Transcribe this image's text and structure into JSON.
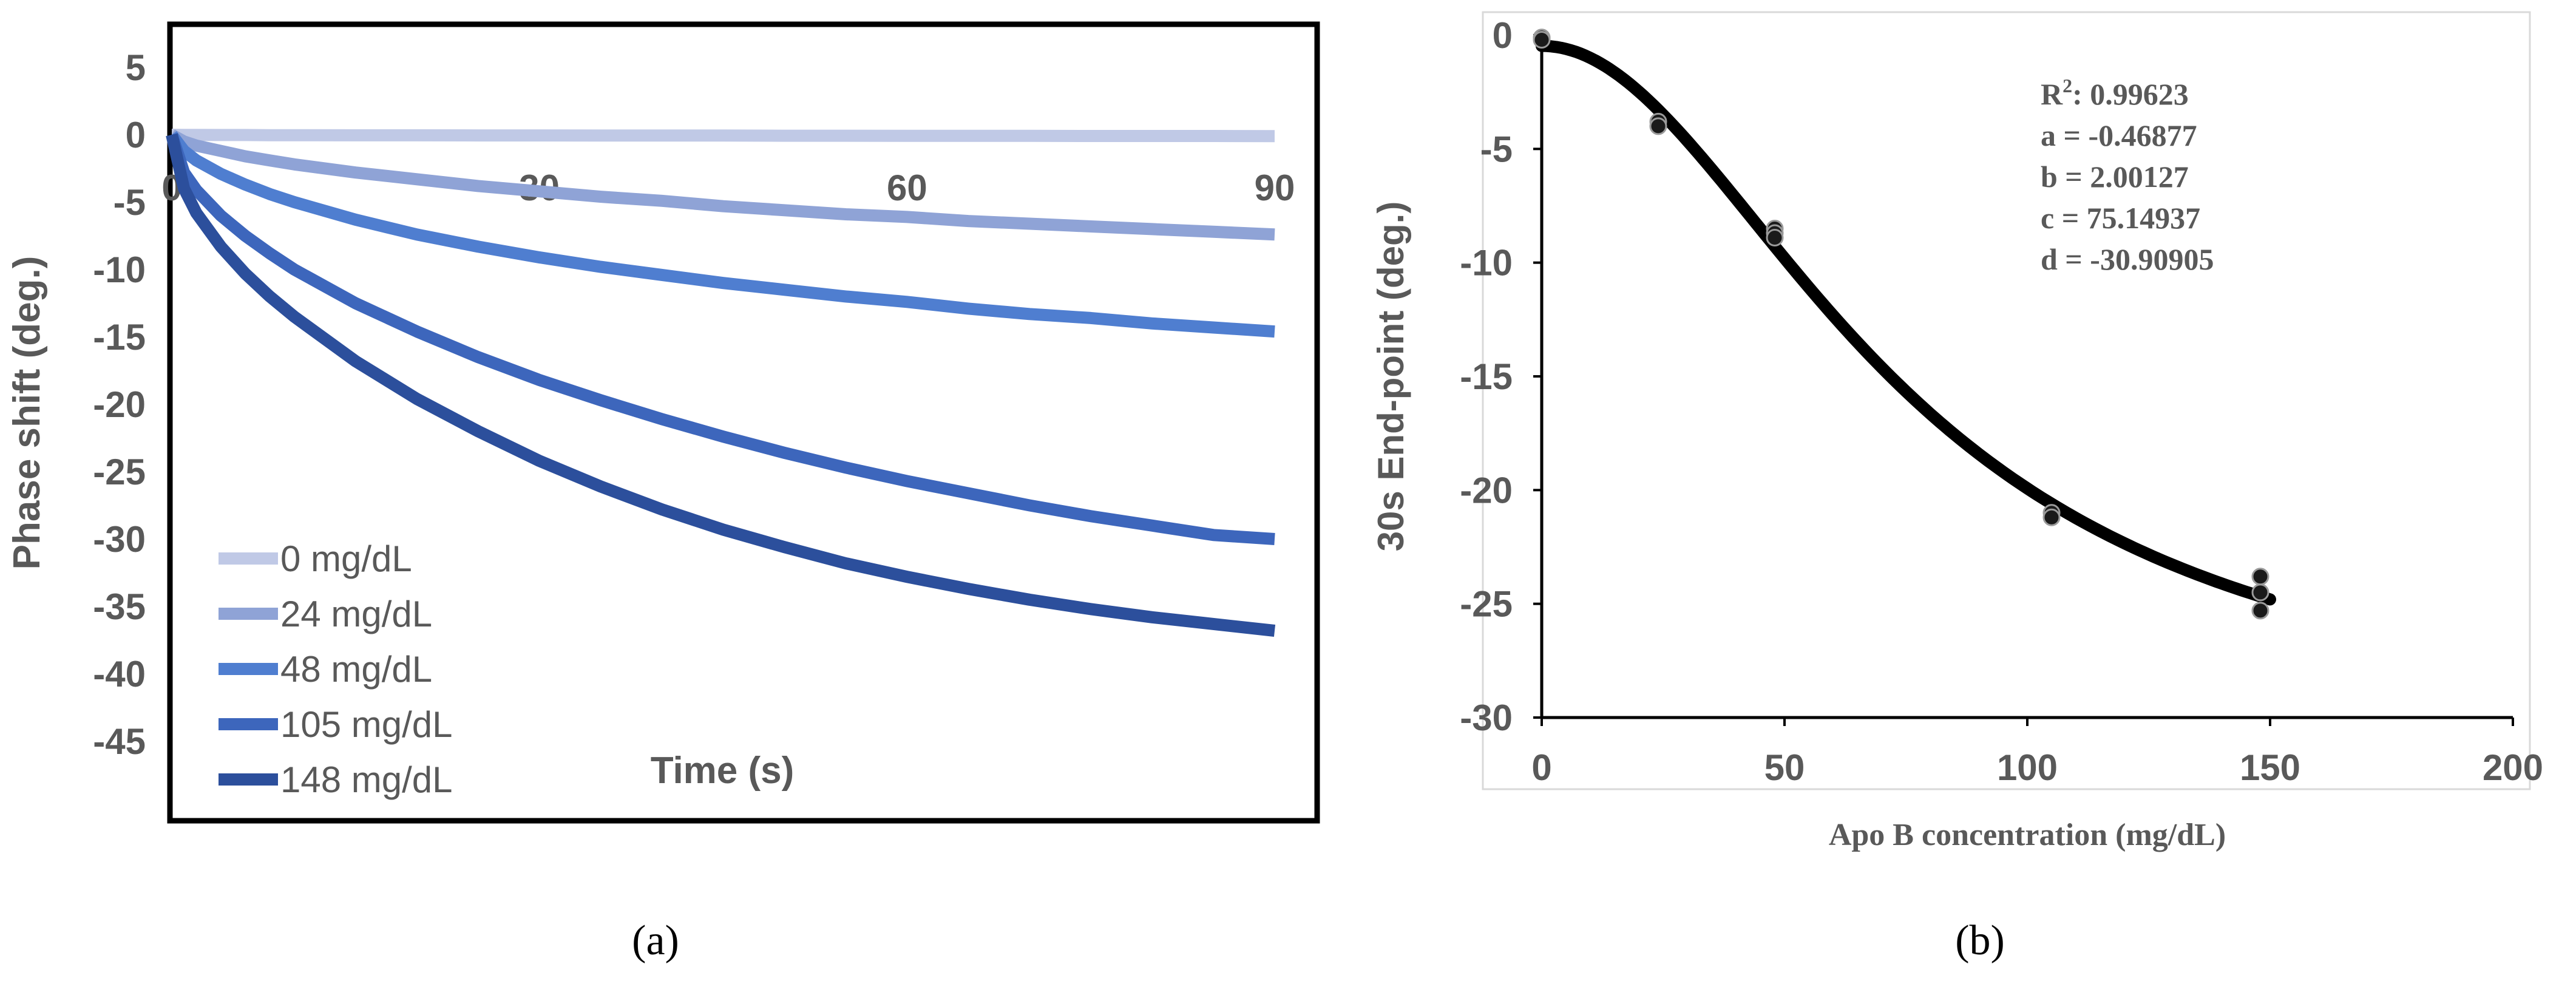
{
  "chart_data": [
    {
      "panel_label": "(a)",
      "type": "line",
      "xlabel": "Time (s)",
      "ylabel": "Phase shift (deg.)",
      "xlim": [
        0,
        90
      ],
      "ylim": [
        -50,
        8
      ],
      "x_ticks": [
        "0",
        "30",
        "60",
        "90"
      ],
      "y_ticks": [
        "5",
        "0",
        "-5",
        "-10",
        "-15",
        "-20",
        "-25",
        "-30",
        "-35",
        "-40",
        "-45"
      ],
      "legend_position": "bottom-left",
      "grid": false,
      "x": [
        0,
        1,
        2,
        4,
        6,
        8,
        10,
        15,
        20,
        25,
        30,
        35,
        40,
        45,
        50,
        55,
        60,
        65,
        70,
        75,
        80,
        85,
        90
      ],
      "series": [
        {
          "name": "0 mg/dL",
          "color": "#c0c9e6",
          "values": [
            0,
            -0.01,
            -0.01,
            -0.02,
            -0.02,
            -0.03,
            -0.03,
            -0.04,
            -0.04,
            -0.05,
            -0.05,
            -0.06,
            -0.06,
            -0.06,
            -0.07,
            -0.07,
            -0.08,
            -0.08,
            -0.08,
            -0.09,
            -0.09,
            -0.09,
            -0.1
          ]
        },
        {
          "name": "24 mg/dL",
          "color": "#8fa3d6",
          "values": [
            0,
            -0.5,
            -0.8,
            -1.2,
            -1.6,
            -1.9,
            -2.2,
            -2.8,
            -3.3,
            -3.8,
            -4.2,
            -4.6,
            -4.9,
            -5.3,
            -5.6,
            -5.9,
            -6.1,
            -6.4,
            -6.6,
            -6.8,
            -7.0,
            -7.2,
            -7.4
          ]
        },
        {
          "name": "48 mg/dL",
          "color": "#4f7ed0",
          "values": [
            0,
            -1.2,
            -1.9,
            -2.9,
            -3.7,
            -4.4,
            -5.0,
            -6.3,
            -7.4,
            -8.3,
            -9.1,
            -9.8,
            -10.4,
            -11.0,
            -11.5,
            -12.0,
            -12.4,
            -12.9,
            -13.3,
            -13.6,
            -14.0,
            -14.3,
            -14.6
          ]
        },
        {
          "name": "105 mg/dL",
          "color": "#3d66bc",
          "values": [
            0,
            -2.8,
            -4.1,
            -6.0,
            -7.5,
            -8.8,
            -10.0,
            -12.5,
            -14.6,
            -16.5,
            -18.2,
            -19.7,
            -21.1,
            -22.4,
            -23.6,
            -24.7,
            -25.7,
            -26.6,
            -27.5,
            -28.3,
            -29.0,
            -29.7,
            -30.0
          ]
        },
        {
          "name": "148 mg/dL",
          "color": "#2c4f9c",
          "values": [
            0,
            -4.0,
            -5.8,
            -8.3,
            -10.3,
            -12.0,
            -13.5,
            -16.8,
            -19.6,
            -22.0,
            -24.2,
            -26.1,
            -27.8,
            -29.3,
            -30.6,
            -31.8,
            -32.8,
            -33.7,
            -34.5,
            -35.2,
            -35.8,
            -36.3,
            -36.8
          ]
        }
      ]
    },
    {
      "panel_label": "(b)",
      "type": "scatter",
      "xlabel": "Apo B concentration (mg/dL)",
      "ylabel": "30s End-point (deg.)",
      "xlim": [
        0,
        200
      ],
      "ylim": [
        -30,
        0
      ],
      "x_ticks": [
        "0",
        "50",
        "100",
        "150",
        "200"
      ],
      "y_ticks": [
        "0",
        "-5",
        "-10",
        "-15",
        "-20",
        "-25",
        "-30"
      ],
      "grid": false,
      "points": [
        {
          "x": 0,
          "y": -0.1
        },
        {
          "x": 0,
          "y": -0.2
        },
        {
          "x": 24,
          "y": -3.8
        },
        {
          "x": 24,
          "y": -4.0
        },
        {
          "x": 48,
          "y": -8.5
        },
        {
          "x": 48,
          "y": -8.7
        },
        {
          "x": 48,
          "y": -8.9
        },
        {
          "x": 105,
          "y": -21.0
        },
        {
          "x": 105,
          "y": -21.2
        },
        {
          "x": 148,
          "y": -23.8
        },
        {
          "x": 148,
          "y": -24.5
        },
        {
          "x": 148,
          "y": -25.3
        }
      ],
      "fit": {
        "model": "4PL",
        "a": -0.46877,
        "b": 2.00127,
        "c": 75.14937,
        "d": -30.90905,
        "x_range": [
          0,
          150
        ]
      },
      "annotation_lines": [
        {
          "id": "r2",
          "label": "R",
          "sup": "2",
          "rest": ": 0.99623"
        },
        {
          "id": "a",
          "text": "a = -0.46877"
        },
        {
          "id": "b",
          "text": "b = 2.00127"
        },
        {
          "id": "c",
          "text": "c = 75.14937"
        },
        {
          "id": "d",
          "text": "d = -30.90905"
        }
      ]
    }
  ]
}
